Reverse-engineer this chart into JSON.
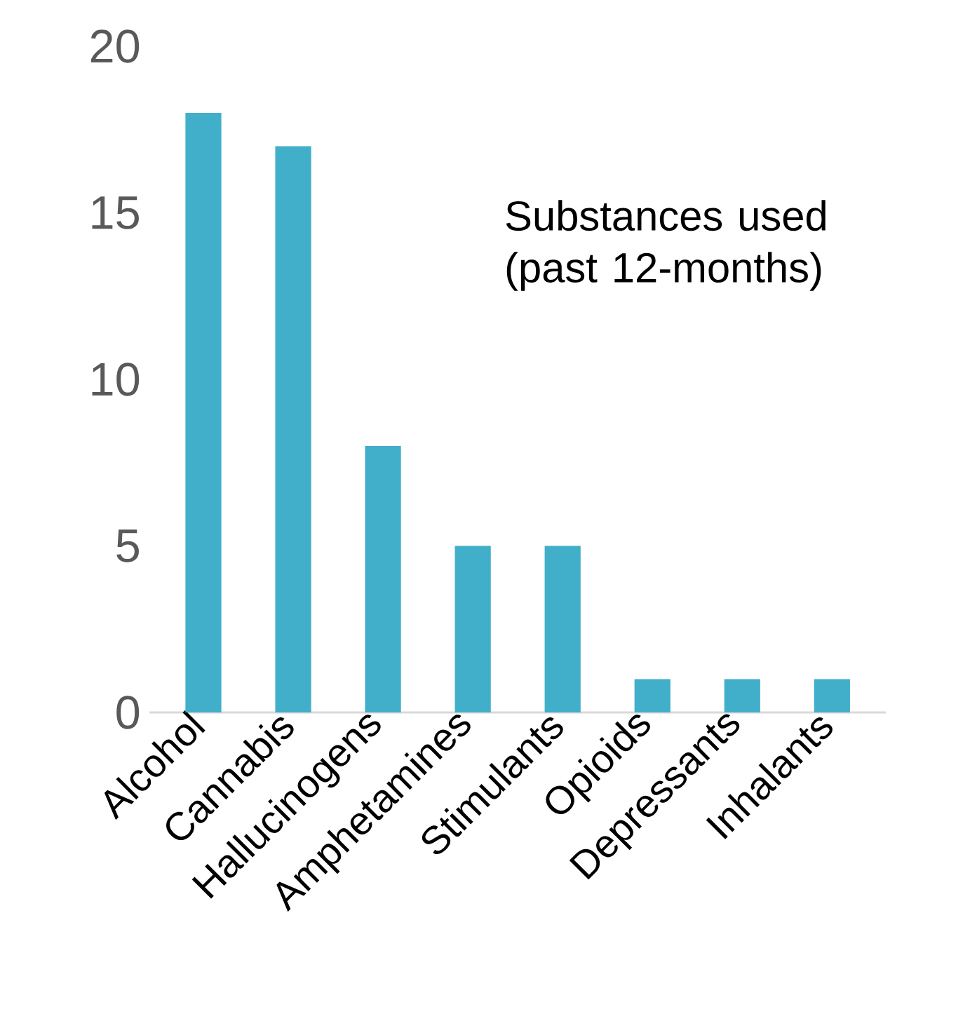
{
  "chart_data": {
    "type": "bar",
    "title": "Substances used (past 12-months)",
    "categories": [
      "Alcohol",
      "Cannabis",
      "Hallucinogens",
      "Amphetamines",
      "Stimulants",
      "Opioids",
      "Depressants",
      "Inhalants"
    ],
    "values": [
      18,
      17,
      8,
      5,
      5,
      1,
      1,
      1
    ],
    "color": "#41afc9",
    "ylim": [
      0,
      20
    ],
    "yticks": [
      0,
      5,
      10,
      15,
      20
    ]
  }
}
